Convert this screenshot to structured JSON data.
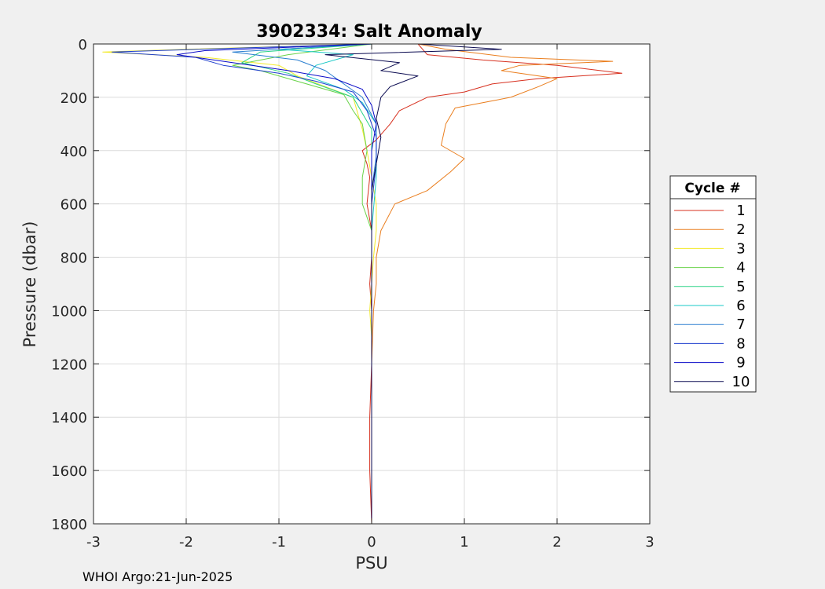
{
  "chart_data": {
    "type": "line",
    "title": "3902334: Salt Anomaly",
    "xlabel": "PSU",
    "ylabel": "Pressure (dbar)",
    "xlim": [
      -3,
      3
    ],
    "ylim": [
      0,
      1800
    ],
    "y_reversed": true,
    "grid": true,
    "xticks": [
      "-3",
      "-2",
      "-1",
      "0",
      "1",
      "2",
      "3"
    ],
    "yticks": [
      "0",
      "200",
      "400",
      "600",
      "800",
      "1000",
      "1200",
      "1400",
      "1600",
      "1800"
    ],
    "legend": {
      "title": "Cycle #",
      "placement": "right-outside"
    },
    "series": [
      {
        "name": "1",
        "color": "#d7301f",
        "points": [
          [
            0.5,
            0
          ],
          [
            0.55,
            20
          ],
          [
            0.6,
            40
          ],
          [
            1.2,
            60
          ],
          [
            2.0,
            80
          ],
          [
            2.7,
            110
          ],
          [
            1.8,
            130
          ],
          [
            1.3,
            150
          ],
          [
            1.0,
            180
          ],
          [
            0.6,
            200
          ],
          [
            0.3,
            250
          ],
          [
            0.2,
            300
          ],
          [
            0.05,
            360
          ],
          [
            -0.1,
            400
          ],
          [
            -0.05,
            450
          ],
          [
            -0.02,
            500
          ],
          [
            -0.05,
            600
          ],
          [
            0.0,
            700
          ],
          [
            0.0,
            800
          ],
          [
            -0.02,
            900
          ],
          [
            0.0,
            1000
          ],
          [
            0.0,
            1200
          ],
          [
            -0.02,
            1400
          ],
          [
            -0.02,
            1600
          ],
          [
            0.0,
            1800
          ]
        ]
      },
      {
        "name": "2",
        "color": "#ea7e1e",
        "points": [
          [
            0.5,
            0
          ],
          [
            0.8,
            20
          ],
          [
            1.5,
            50
          ],
          [
            2.6,
            65
          ],
          [
            1.6,
            80
          ],
          [
            1.4,
            100
          ],
          [
            2.0,
            130
          ],
          [
            1.8,
            160
          ],
          [
            1.5,
            200
          ],
          [
            0.9,
            240
          ],
          [
            0.8,
            300
          ],
          [
            0.75,
            380
          ],
          [
            1.0,
            430
          ],
          [
            0.85,
            480
          ],
          [
            0.6,
            550
          ],
          [
            0.25,
            600
          ],
          [
            0.1,
            700
          ],
          [
            0.05,
            800
          ],
          [
            0.05,
            900
          ],
          [
            0.02,
            1000
          ],
          [
            0.0,
            1200
          ],
          [
            0.0,
            1500
          ],
          [
            0.0,
            1800
          ]
        ]
      },
      {
        "name": "3",
        "color": "#f2ea2a",
        "points": [
          [
            0.0,
            0
          ],
          [
            -2.0,
            20
          ],
          [
            -2.9,
            30
          ],
          [
            -1.8,
            50
          ],
          [
            -1.0,
            80
          ],
          [
            -0.8,
            120
          ],
          [
            -0.5,
            160
          ],
          [
            -0.2,
            200
          ],
          [
            -0.15,
            260
          ],
          [
            -0.1,
            320
          ],
          [
            -0.05,
            400
          ],
          [
            0.0,
            500
          ],
          [
            0.05,
            600
          ],
          [
            0.05,
            700
          ],
          [
            0.02,
            800
          ],
          [
            0.0,
            900
          ],
          [
            -0.02,
            1000
          ],
          [
            0.0,
            1100
          ],
          [
            0.0,
            1300
          ],
          [
            0.0,
            1800
          ]
        ]
      },
      {
        "name": "4",
        "color": "#6ad34a",
        "points": [
          [
            0.0,
            0
          ],
          [
            -0.9,
            40
          ],
          [
            -1.5,
            80
          ],
          [
            -1.2,
            100
          ],
          [
            -0.8,
            140
          ],
          [
            -0.3,
            190
          ],
          [
            -0.2,
            250
          ],
          [
            -0.1,
            300
          ],
          [
            -0.05,
            400
          ],
          [
            -0.1,
            500
          ],
          [
            -0.1,
            600
          ],
          [
            0.0,
            700
          ],
          [
            0.0,
            850
          ],
          [
            0.0,
            1000
          ],
          [
            0.0,
            1800
          ]
        ]
      },
      {
        "name": "5",
        "color": "#2ad386",
        "points": [
          [
            0.0,
            0
          ],
          [
            -1.2,
            30
          ],
          [
            -1.4,
            70
          ],
          [
            -0.9,
            110
          ],
          [
            -0.6,
            150
          ],
          [
            -0.2,
            200
          ],
          [
            -0.1,
            260
          ],
          [
            0.0,
            320
          ],
          [
            0.0,
            400
          ],
          [
            0.0,
            500
          ],
          [
            0.0,
            650
          ],
          [
            0.0,
            800
          ],
          [
            0.0,
            1000
          ],
          [
            0.0,
            1800
          ]
        ]
      },
      {
        "name": "6",
        "color": "#1ac9c7",
        "points": [
          [
            0.0,
            0
          ],
          [
            -1.0,
            20
          ],
          [
            -0.2,
            40
          ],
          [
            -0.6,
            80
          ],
          [
            -0.7,
            120
          ],
          [
            -0.3,
            170
          ],
          [
            -0.1,
            220
          ],
          [
            0.05,
            300
          ],
          [
            0.05,
            400
          ],
          [
            0.05,
            500
          ],
          [
            0.0,
            700
          ],
          [
            0.0,
            1000
          ],
          [
            0.0,
            1800
          ]
        ]
      },
      {
        "name": "7",
        "color": "#2a7fd0",
        "points": [
          [
            0.0,
            0
          ],
          [
            -1.5,
            30
          ],
          [
            -0.8,
            60
          ],
          [
            -0.5,
            100
          ],
          [
            -0.3,
            150
          ],
          [
            -0.1,
            200
          ],
          [
            0.05,
            300
          ],
          [
            0.05,
            420
          ],
          [
            0.0,
            550
          ],
          [
            0.0,
            700
          ],
          [
            0.0,
            1000
          ],
          [
            0.0,
            1800
          ]
        ]
      },
      {
        "name": "8",
        "color": "#1f3fce",
        "points": [
          [
            0.0,
            0
          ],
          [
            -2.8,
            30
          ],
          [
            -1.9,
            50
          ],
          [
            -1.6,
            80
          ],
          [
            -1.0,
            110
          ],
          [
            -0.6,
            140
          ],
          [
            -0.2,
            180
          ],
          [
            -0.05,
            250
          ],
          [
            0.05,
            350
          ],
          [
            0.05,
            450
          ],
          [
            0.0,
            600
          ],
          [
            0.0,
            800
          ],
          [
            0.0,
            1000
          ],
          [
            0.0,
            1800
          ]
        ]
      },
      {
        "name": "9",
        "color": "#0a0ac8",
        "points": [
          [
            0.0,
            0
          ],
          [
            -1.8,
            25
          ],
          [
            -2.1,
            40
          ],
          [
            -1.5,
            70
          ],
          [
            -0.9,
            100
          ],
          [
            -0.4,
            130
          ],
          [
            -0.1,
            170
          ],
          [
            0.0,
            230
          ],
          [
            0.05,
            300
          ],
          [
            0.0,
            400
          ],
          [
            0.0,
            550
          ],
          [
            0.0,
            700
          ],
          [
            0.0,
            1000
          ],
          [
            0.0,
            1800
          ]
        ]
      },
      {
        "name": "10",
        "color": "#0a0a50",
        "points": [
          [
            0.5,
            0
          ],
          [
            1.4,
            20
          ],
          [
            -0.5,
            40
          ],
          [
            0.3,
            70
          ],
          [
            0.1,
            100
          ],
          [
            0.5,
            120
          ],
          [
            0.2,
            160
          ],
          [
            0.1,
            200
          ],
          [
            0.05,
            280
          ],
          [
            0.1,
            350
          ],
          [
            0.05,
            450
          ],
          [
            0.0,
            550
          ],
          [
            0.0,
            700
          ],
          [
            0.0,
            1000
          ],
          [
            0.0,
            1800
          ]
        ]
      }
    ]
  },
  "footer": "WHOI Argo:21-Jun-2025"
}
